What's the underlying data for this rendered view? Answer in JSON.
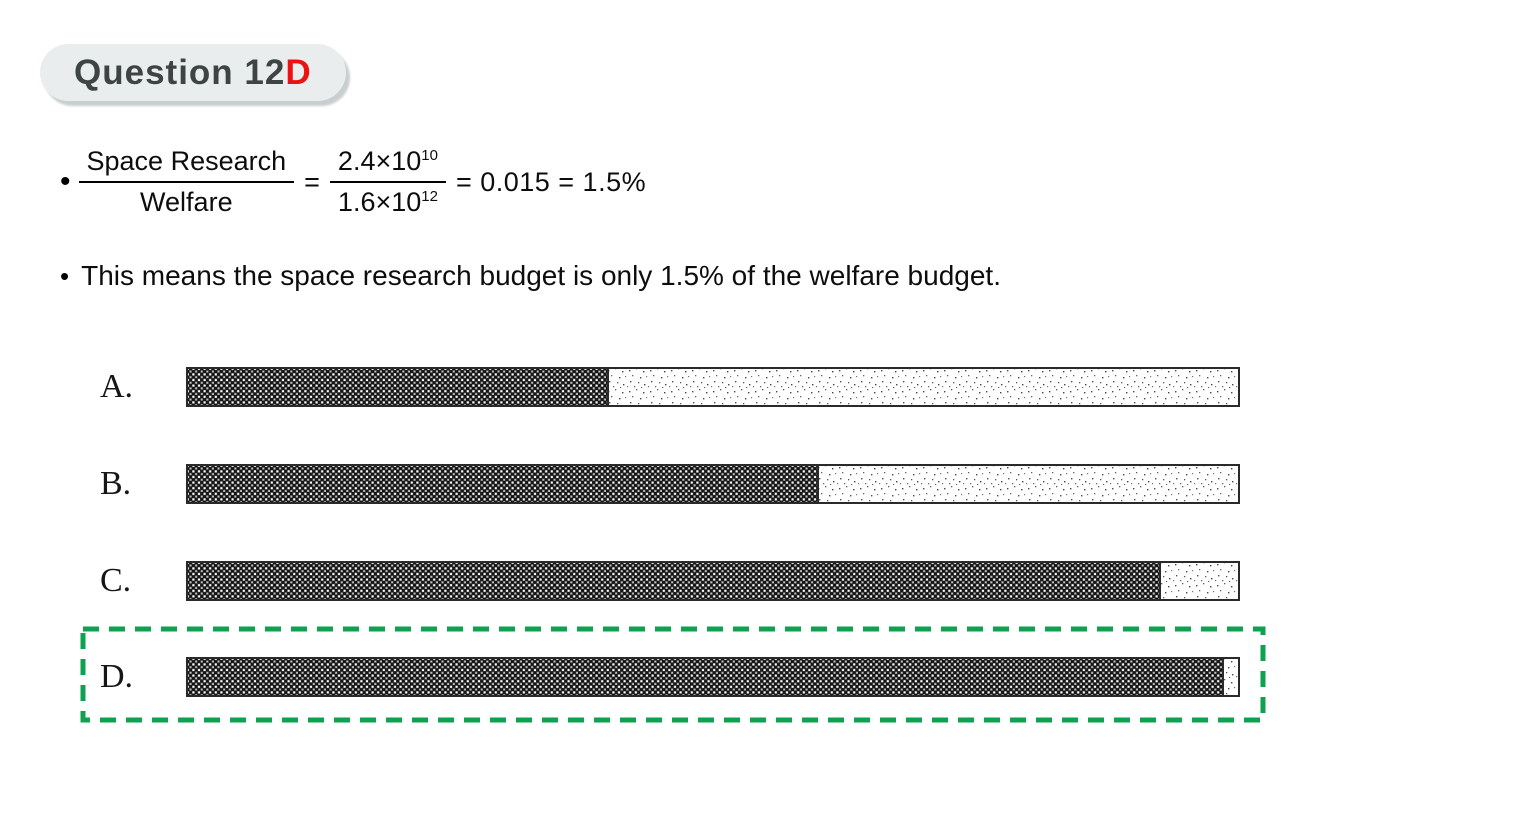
{
  "header": {
    "title_main": "Question 12",
    "title_suffix": "D",
    "suffix_color": "#ee1111",
    "pill_bg": "#e9edee",
    "pill_text_color": "#3e4344"
  },
  "solution": {
    "bullet_char": "•",
    "frac1": {
      "num": "Space Research",
      "den": "Welfare"
    },
    "equals": "=",
    "frac2": {
      "num_base": "2.4×10",
      "num_exp": "10",
      "den_base": "1.6×10",
      "den_exp": "12"
    },
    "result": "= 0.015 = 1.5%",
    "bullet2": "This means the space research budget is only 1.5% of the welfare budget."
  },
  "options": [
    {
      "label": "A.",
      "shaded_percent": 40,
      "selected": false
    },
    {
      "label": "B.",
      "shaded_percent": 60,
      "selected": false
    },
    {
      "label": "C.",
      "shaded_percent": 92.5,
      "selected": false
    },
    {
      "label": "D.",
      "shaded_percent": 98.5,
      "selected": true
    }
  ],
  "answer": {
    "correct_option": "D",
    "highlight_color": "#0da150"
  },
  "chart_data": {
    "type": "bar",
    "description": "Four horizontal proportion bars; dark crosshatched segment = shaded share, light speckled segment = remainder",
    "categories": [
      "A",
      "B",
      "C",
      "D"
    ],
    "values": [
      40,
      60,
      92.5,
      98.5
    ],
    "units": "percent shaded",
    "xlim": [
      0,
      100
    ],
    "correct": "D"
  }
}
